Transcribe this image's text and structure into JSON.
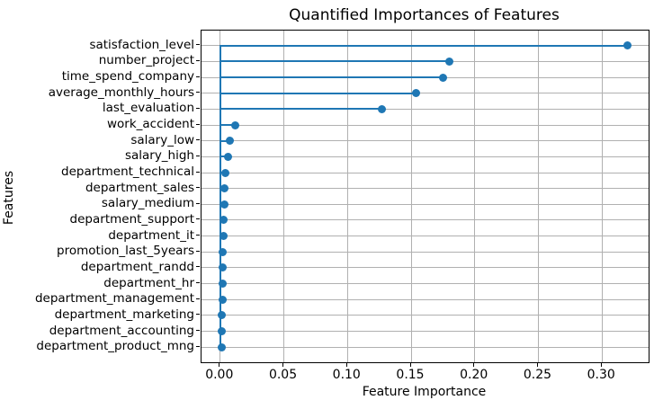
{
  "title": "Quantified Importances of Features",
  "chart_data": {
    "type": "scatter",
    "variant": "horizontal-stem-lollipop",
    "title": "Quantified Importances of Features",
    "xlabel": "Feature Importance",
    "ylabel": "Features",
    "categories": [
      "satisfaction_level",
      "number_project",
      "time_spend_company",
      "average_monthly_hours",
      "last_evaluation",
      "work_accident",
      "salary_low",
      "salary_high",
      "department_technical",
      "department_sales",
      "salary_medium",
      "department_support",
      "department_it",
      "promotion_last_5years",
      "department_randd",
      "department_hr",
      "department_management",
      "department_marketing",
      "department_accounting",
      "department_product_mng"
    ],
    "values": [
      0.32,
      0.18,
      0.175,
      0.154,
      0.127,
      0.012,
      0.0074,
      0.0058,
      0.0042,
      0.0035,
      0.0033,
      0.0028,
      0.0024,
      0.0022,
      0.0021,
      0.0019,
      0.0018,
      0.0015,
      0.0013,
      0.0011
    ],
    "xticks": [
      0.0,
      0.05,
      0.1,
      0.15,
      0.2,
      0.25,
      0.3
    ],
    "xtick_labels": [
      "0.00",
      "0.05",
      "0.10",
      "0.15",
      "0.20",
      "0.25",
      "0.30"
    ],
    "xlim": [
      -0.0147,
      0.3366
    ],
    "baseline": 0,
    "grid": true,
    "legend": false,
    "colors": {
      "stem": "#1f77b4",
      "marker": "#1f77b4",
      "grid": "#b0b0b0",
      "axis": "#000000",
      "background": "#ffffff"
    }
  }
}
